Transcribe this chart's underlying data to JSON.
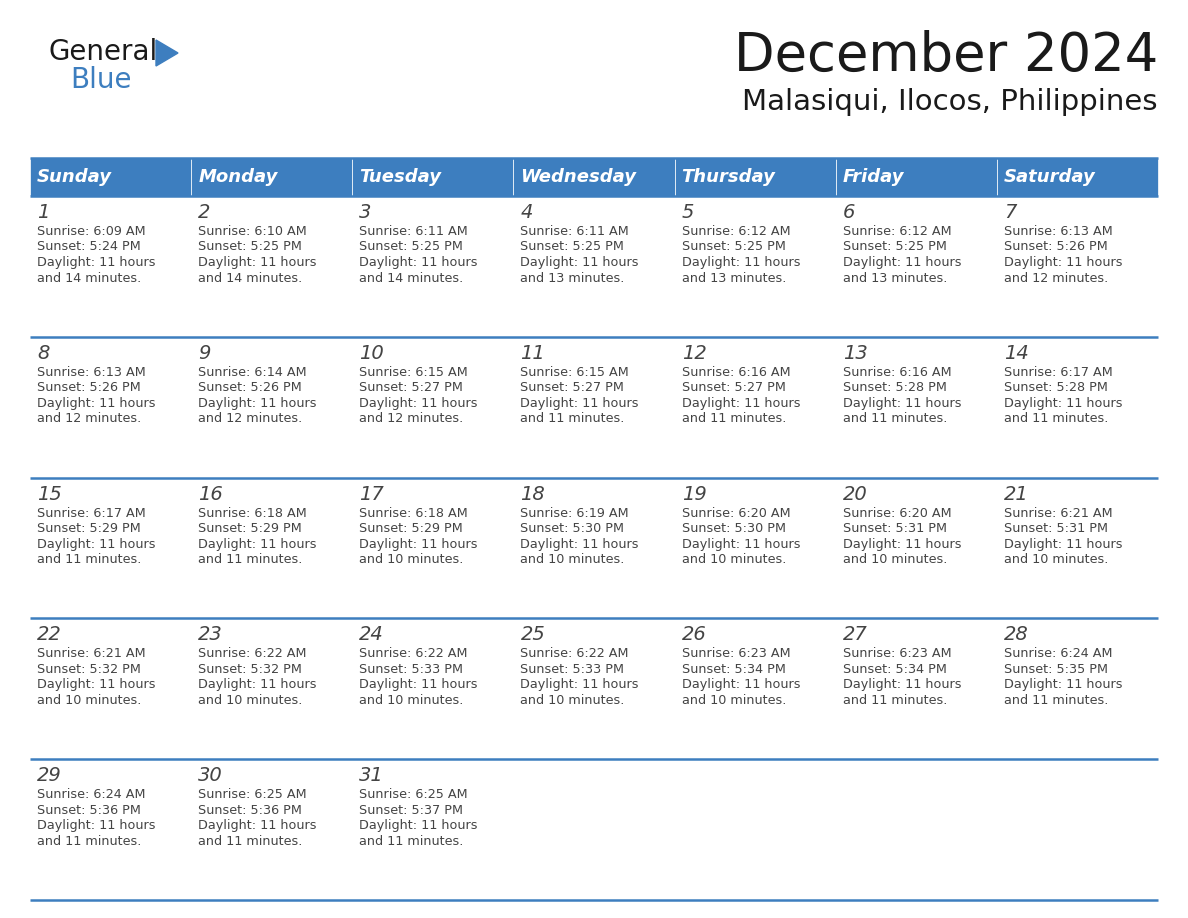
{
  "title": "December 2024",
  "subtitle": "Malasiqui, Ilocos, Philippines",
  "header_color": "#3d7ebf",
  "header_text_color": "#ffffff",
  "border_color": "#3d7ebf",
  "text_color": "#444444",
  "day_names": [
    "Sunday",
    "Monday",
    "Tuesday",
    "Wednesday",
    "Thursday",
    "Friday",
    "Saturday"
  ],
  "days_data": [
    {
      "day": 1,
      "col": 0,
      "row": 0,
      "sunrise": "6:09 AM",
      "sunset": "5:24 PM",
      "daylight": "11 hours",
      "daylight2": "and 14 minutes."
    },
    {
      "day": 2,
      "col": 1,
      "row": 0,
      "sunrise": "6:10 AM",
      "sunset": "5:25 PM",
      "daylight": "11 hours",
      "daylight2": "and 14 minutes."
    },
    {
      "day": 3,
      "col": 2,
      "row": 0,
      "sunrise": "6:11 AM",
      "sunset": "5:25 PM",
      "daylight": "11 hours",
      "daylight2": "and 14 minutes."
    },
    {
      "day": 4,
      "col": 3,
      "row": 0,
      "sunrise": "6:11 AM",
      "sunset": "5:25 PM",
      "daylight": "11 hours",
      "daylight2": "and 13 minutes."
    },
    {
      "day": 5,
      "col": 4,
      "row": 0,
      "sunrise": "6:12 AM",
      "sunset": "5:25 PM",
      "daylight": "11 hours",
      "daylight2": "and 13 minutes."
    },
    {
      "day": 6,
      "col": 5,
      "row": 0,
      "sunrise": "6:12 AM",
      "sunset": "5:25 PM",
      "daylight": "11 hours",
      "daylight2": "and 13 minutes."
    },
    {
      "day": 7,
      "col": 6,
      "row": 0,
      "sunrise": "6:13 AM",
      "sunset": "5:26 PM",
      "daylight": "11 hours",
      "daylight2": "and 12 minutes."
    },
    {
      "day": 8,
      "col": 0,
      "row": 1,
      "sunrise": "6:13 AM",
      "sunset": "5:26 PM",
      "daylight": "11 hours",
      "daylight2": "and 12 minutes."
    },
    {
      "day": 9,
      "col": 1,
      "row": 1,
      "sunrise": "6:14 AM",
      "sunset": "5:26 PM",
      "daylight": "11 hours",
      "daylight2": "and 12 minutes."
    },
    {
      "day": 10,
      "col": 2,
      "row": 1,
      "sunrise": "6:15 AM",
      "sunset": "5:27 PM",
      "daylight": "11 hours",
      "daylight2": "and 12 minutes."
    },
    {
      "day": 11,
      "col": 3,
      "row": 1,
      "sunrise": "6:15 AM",
      "sunset": "5:27 PM",
      "daylight": "11 hours",
      "daylight2": "and 11 minutes."
    },
    {
      "day": 12,
      "col": 4,
      "row": 1,
      "sunrise": "6:16 AM",
      "sunset": "5:27 PM",
      "daylight": "11 hours",
      "daylight2": "and 11 minutes."
    },
    {
      "day": 13,
      "col": 5,
      "row": 1,
      "sunrise": "6:16 AM",
      "sunset": "5:28 PM",
      "daylight": "11 hours",
      "daylight2": "and 11 minutes."
    },
    {
      "day": 14,
      "col": 6,
      "row": 1,
      "sunrise": "6:17 AM",
      "sunset": "5:28 PM",
      "daylight": "11 hours",
      "daylight2": "and 11 minutes."
    },
    {
      "day": 15,
      "col": 0,
      "row": 2,
      "sunrise": "6:17 AM",
      "sunset": "5:29 PM",
      "daylight": "11 hours",
      "daylight2": "and 11 minutes."
    },
    {
      "day": 16,
      "col": 1,
      "row": 2,
      "sunrise": "6:18 AM",
      "sunset": "5:29 PM",
      "daylight": "11 hours",
      "daylight2": "and 11 minutes."
    },
    {
      "day": 17,
      "col": 2,
      "row": 2,
      "sunrise": "6:18 AM",
      "sunset": "5:29 PM",
      "daylight": "11 hours",
      "daylight2": "and 10 minutes."
    },
    {
      "day": 18,
      "col": 3,
      "row": 2,
      "sunrise": "6:19 AM",
      "sunset": "5:30 PM",
      "daylight": "11 hours",
      "daylight2": "and 10 minutes."
    },
    {
      "day": 19,
      "col": 4,
      "row": 2,
      "sunrise": "6:20 AM",
      "sunset": "5:30 PM",
      "daylight": "11 hours",
      "daylight2": "and 10 minutes."
    },
    {
      "day": 20,
      "col": 5,
      "row": 2,
      "sunrise": "6:20 AM",
      "sunset": "5:31 PM",
      "daylight": "11 hours",
      "daylight2": "and 10 minutes."
    },
    {
      "day": 21,
      "col": 6,
      "row": 2,
      "sunrise": "6:21 AM",
      "sunset": "5:31 PM",
      "daylight": "11 hours",
      "daylight2": "and 10 minutes."
    },
    {
      "day": 22,
      "col": 0,
      "row": 3,
      "sunrise": "6:21 AM",
      "sunset": "5:32 PM",
      "daylight": "11 hours",
      "daylight2": "and 10 minutes."
    },
    {
      "day": 23,
      "col": 1,
      "row": 3,
      "sunrise": "6:22 AM",
      "sunset": "5:32 PM",
      "daylight": "11 hours",
      "daylight2": "and 10 minutes."
    },
    {
      "day": 24,
      "col": 2,
      "row": 3,
      "sunrise": "6:22 AM",
      "sunset": "5:33 PM",
      "daylight": "11 hours",
      "daylight2": "and 10 minutes."
    },
    {
      "day": 25,
      "col": 3,
      "row": 3,
      "sunrise": "6:22 AM",
      "sunset": "5:33 PM",
      "daylight": "11 hours",
      "daylight2": "and 10 minutes."
    },
    {
      "day": 26,
      "col": 4,
      "row": 3,
      "sunrise": "6:23 AM",
      "sunset": "5:34 PM",
      "daylight": "11 hours",
      "daylight2": "and 10 minutes."
    },
    {
      "day": 27,
      "col": 5,
      "row": 3,
      "sunrise": "6:23 AM",
      "sunset": "5:34 PM",
      "daylight": "11 hours",
      "daylight2": "and 11 minutes."
    },
    {
      "day": 28,
      "col": 6,
      "row": 3,
      "sunrise": "6:24 AM",
      "sunset": "5:35 PM",
      "daylight": "11 hours",
      "daylight2": "and 11 minutes."
    },
    {
      "day": 29,
      "col": 0,
      "row": 4,
      "sunrise": "6:24 AM",
      "sunset": "5:36 PM",
      "daylight": "11 hours",
      "daylight2": "and 11 minutes."
    },
    {
      "day": 30,
      "col": 1,
      "row": 4,
      "sunrise": "6:25 AM",
      "sunset": "5:36 PM",
      "daylight": "11 hours",
      "daylight2": "and 11 minutes."
    },
    {
      "day": 31,
      "col": 2,
      "row": 4,
      "sunrise": "6:25 AM",
      "sunset": "5:37 PM",
      "daylight": "11 hours",
      "daylight2": "and 11 minutes."
    }
  ],
  "logo_color_general": "#1a1a1a",
  "logo_color_blue": "#3d7ebf",
  "logo_triangle_color": "#3d7ebf",
  "fig_width": 11.88,
  "fig_height": 9.18,
  "dpi": 100
}
